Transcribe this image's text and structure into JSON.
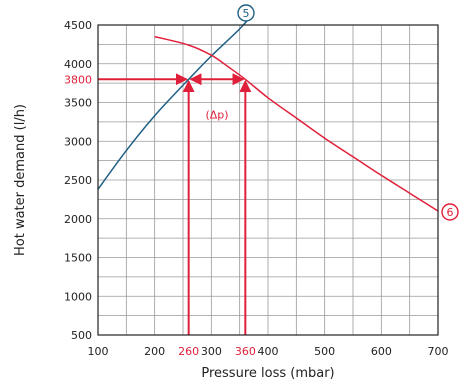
{
  "colors": {
    "series_a": "#1f5f85",
    "series_b": "#e0203a",
    "annotation": "#e0203a",
    "grid": "#9a9a9a",
    "text": "#222222"
  },
  "chart_data": {
    "type": "line",
    "xlabel": "Pressure loss (mbar)",
    "ylabel": "Hot water demand (l/h)",
    "xlim": [
      100,
      700
    ],
    "ylim": [
      500,
      4500
    ],
    "x_ticks": [
      100,
      200,
      300,
      400,
      500,
      600,
      700
    ],
    "y_ticks": [
      500,
      1000,
      1500,
      2000,
      2500,
      3000,
      3500,
      4000,
      4500
    ],
    "grid": true,
    "series": [
      {
        "name": "5",
        "points": [
          [
            100,
            2380
          ],
          [
            150,
            2880
          ],
          [
            200,
            3330
          ],
          [
            260,
            3800
          ],
          [
            300,
            4100
          ],
          [
            350,
            4450
          ],
          [
            380,
            4700
          ]
        ]
      },
      {
        "name": "6",
        "points": [
          [
            200,
            4350
          ],
          [
            260,
            4240
          ],
          [
            300,
            4110
          ],
          [
            330,
            3960
          ],
          [
            360,
            3800
          ],
          [
            400,
            3560
          ],
          [
            450,
            3300
          ],
          [
            500,
            3040
          ],
          [
            550,
            2800
          ],
          [
            600,
            2560
          ],
          [
            650,
            2330
          ],
          [
            700,
            2100
          ]
        ]
      }
    ],
    "annotations": {
      "y_value": 3800,
      "y_label": "3800",
      "x_values": [
        260,
        360
      ],
      "x_labels": [
        "260",
        "360"
      ],
      "delta_label": "(Δp)"
    }
  }
}
